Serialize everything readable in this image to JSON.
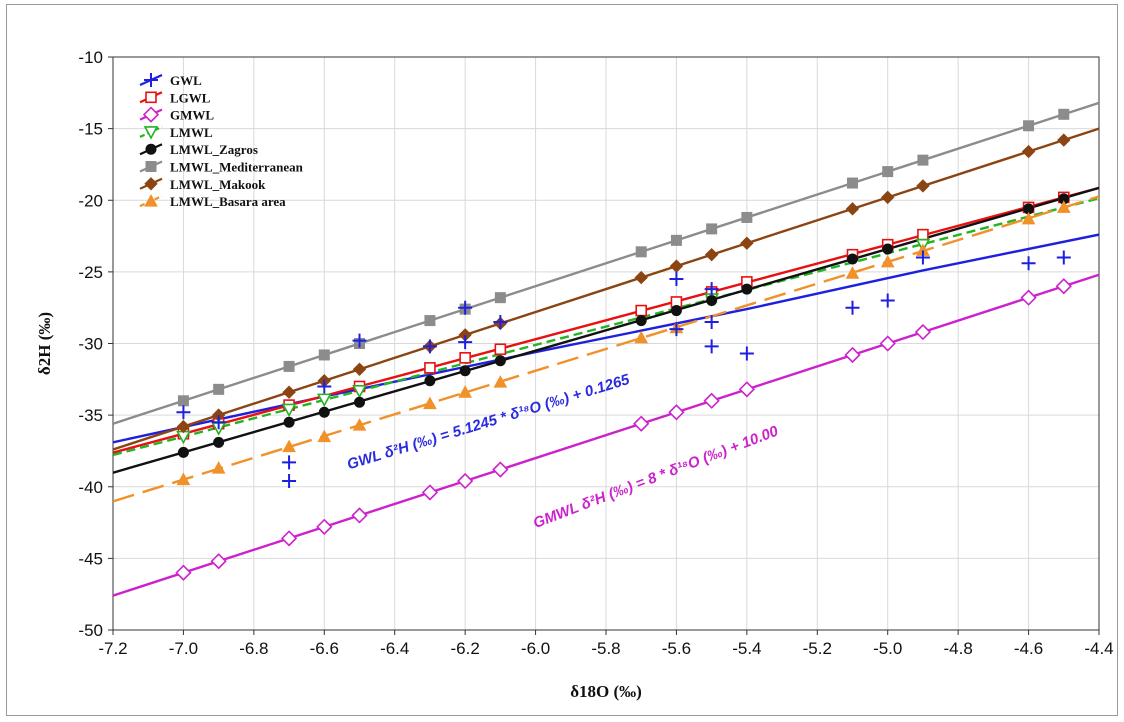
{
  "chart_data": {
    "type": "line",
    "title": "",
    "xlabel": "δ18O (‰)",
    "ylabel": "δ2H (‰)",
    "xlim": [
      -7.2,
      -4.4
    ],
    "ylim": [
      -50,
      -10
    ],
    "xticks": [
      "-7.2",
      "-7.0",
      "-6.8",
      "-6.6",
      "-6.4",
      "-6.2",
      "-6.0",
      "-5.8",
      "-5.6",
      "-5.4",
      "-5.2",
      "-5.0",
      "-4.8",
      "-4.6",
      "-4.4"
    ],
    "yticks": [
      "-10",
      "-15",
      "-20",
      "-25",
      "-30",
      "-35",
      "-40",
      "-45",
      "-50"
    ],
    "grid": true,
    "legend_position": "top-left",
    "series": [
      {
        "name": "GWL",
        "color": "#1f1fe0",
        "marker": "plus",
        "slope": 5.1245,
        "intercept": 0.1265,
        "dash": "solid",
        "points": [
          [
            -7.0,
            -34.8
          ],
          [
            -6.9,
            -35.5
          ],
          [
            -6.7,
            -38.3
          ],
          [
            -6.7,
            -39.6
          ],
          [
            -6.6,
            -33.0
          ],
          [
            -6.5,
            -29.8
          ],
          [
            -6.3,
            -30.2
          ],
          [
            -6.2,
            -27.5
          ],
          [
            -6.2,
            -29.9
          ],
          [
            -6.1,
            -28.5
          ],
          [
            -5.6,
            -25.5
          ],
          [
            -5.6,
            -29.0
          ],
          [
            -5.5,
            -26.2
          ],
          [
            -5.5,
            -28.5
          ],
          [
            -5.5,
            -30.2
          ],
          [
            -5.4,
            -30.7
          ],
          [
            -5.1,
            -27.5
          ],
          [
            -5.0,
            -27.0
          ],
          [
            -4.9,
            -24.0
          ],
          [
            -4.6,
            -24.4
          ],
          [
            -4.5,
            -24.0
          ]
        ]
      },
      {
        "name": "LGWL",
        "color": "#e81010",
        "marker": "square",
        "slope": 6.6,
        "intercept": 9.9,
        "dash": "solid",
        "points": [
          [
            -7.0,
            -36.3
          ],
          [
            -6.9,
            -35.6
          ],
          [
            -6.7,
            -34.3
          ],
          [
            -6.5,
            -33.0
          ],
          [
            -6.3,
            -31.7
          ],
          [
            -6.2,
            -31.0
          ],
          [
            -6.1,
            -30.4
          ],
          [
            -5.7,
            -27.7
          ],
          [
            -5.6,
            -27.1
          ],
          [
            -5.5,
            -26.4
          ],
          [
            -5.4,
            -25.7
          ],
          [
            -5.1,
            -23.8
          ],
          [
            -5.0,
            -23.1
          ],
          [
            -4.9,
            -22.4
          ],
          [
            -4.6,
            -20.5
          ],
          [
            -4.5,
            -19.8
          ]
        ]
      },
      {
        "name": "GMWL",
        "color": "#cc22cc",
        "marker": "diamond",
        "slope": 8,
        "intercept": 10,
        "dash": "solid",
        "points": [
          [
            -7.0,
            -46.0
          ],
          [
            -6.9,
            -45.2
          ],
          [
            -6.7,
            -43.6
          ],
          [
            -6.6,
            -42.8
          ],
          [
            -6.5,
            -42.0
          ],
          [
            -6.3,
            -40.4
          ],
          [
            -6.2,
            -39.6
          ],
          [
            -6.1,
            -38.8
          ],
          [
            -5.7,
            -35.6
          ],
          [
            -5.6,
            -34.8
          ],
          [
            -5.5,
            -34.0
          ],
          [
            -5.4,
            -33.2
          ],
          [
            -5.1,
            -30.8
          ],
          [
            -5.0,
            -30.0
          ],
          [
            -4.9,
            -29.2
          ],
          [
            -4.6,
            -26.8
          ],
          [
            -4.5,
            -26.0
          ]
        ]
      },
      {
        "name": "LMWL",
        "color": "#22b422",
        "marker": "triangle-down",
        "slope": 6.4,
        "intercept": 8.3,
        "dash": "dashed",
        "points": [
          [
            -7.0,
            -36.5
          ],
          [
            -6.9,
            -35.9
          ],
          [
            -6.7,
            -34.6
          ],
          [
            -6.6,
            -33.9
          ],
          [
            -6.5,
            -33.3
          ],
          [
            -5.5,
            -26.9
          ],
          [
            -4.9,
            -23.1
          ]
        ]
      },
      {
        "name": "LMWL_Zagros",
        "color": "#111111",
        "marker": "circle",
        "slope": 7.1,
        "intercept": 12.1,
        "dash": "solid",
        "points": [
          [
            -7.0,
            -37.6
          ],
          [
            -6.9,
            -36.9
          ],
          [
            -6.7,
            -35.5
          ],
          [
            -6.6,
            -34.8
          ],
          [
            -6.5,
            -34.1
          ],
          [
            -6.3,
            -32.6
          ],
          [
            -6.2,
            -31.9
          ],
          [
            -6.1,
            -31.2
          ],
          [
            -5.7,
            -28.4
          ],
          [
            -5.6,
            -27.7
          ],
          [
            -5.5,
            -27.0
          ],
          [
            -5.4,
            -26.2
          ],
          [
            -5.1,
            -24.1
          ],
          [
            -5.0,
            -23.4
          ],
          [
            -4.6,
            -20.6
          ],
          [
            -4.5,
            -19.9
          ]
        ]
      },
      {
        "name": "LMWL_Mediterranean",
        "color": "#8c8c8c",
        "marker": "square-filled",
        "slope": 8.0,
        "intercept": 22.0,
        "dash": "solid",
        "points": [
          [
            -7.0,
            -34.0
          ],
          [
            -6.9,
            -33.2
          ],
          [
            -6.7,
            -31.6
          ],
          [
            -6.6,
            -30.8
          ],
          [
            -6.5,
            -30.0
          ],
          [
            -6.3,
            -28.4
          ],
          [
            -6.2,
            -27.6
          ],
          [
            -6.1,
            -26.8
          ],
          [
            -5.7,
            -23.6
          ],
          [
            -5.6,
            -22.8
          ],
          [
            -5.5,
            -22.0
          ],
          [
            -5.4,
            -21.2
          ],
          [
            -5.1,
            -18.8
          ],
          [
            -5.0,
            -18.0
          ],
          [
            -4.9,
            -17.2
          ],
          [
            -4.6,
            -14.8
          ],
          [
            -4.5,
            -14.0
          ]
        ]
      },
      {
        "name": "LMWL_Makook",
        "color": "#8b4513",
        "marker": "diamond-filled",
        "slope": 8.0,
        "intercept": 20.2,
        "dash": "solid",
        "points": [
          [
            -7.0,
            -35.8
          ],
          [
            -6.9,
            -35.0
          ],
          [
            -6.7,
            -33.4
          ],
          [
            -6.6,
            -32.6
          ],
          [
            -6.5,
            -31.8
          ],
          [
            -6.3,
            -30.2
          ],
          [
            -6.2,
            -29.4
          ],
          [
            -6.1,
            -28.6
          ],
          [
            -5.7,
            -25.4
          ],
          [
            -5.6,
            -24.6
          ],
          [
            -5.5,
            -23.8
          ],
          [
            -5.4,
            -23.0
          ],
          [
            -5.1,
            -20.6
          ],
          [
            -5.0,
            -19.8
          ],
          [
            -4.9,
            -19.0
          ],
          [
            -4.6,
            -16.6
          ],
          [
            -4.5,
            -15.8
          ]
        ]
      },
      {
        "name": "LMWL_Basara area",
        "color": "#f0912a",
        "marker": "triangle-up",
        "slope": 7.6,
        "intercept": 13.7,
        "dash": "long-dash",
        "points": [
          [
            -7.0,
            -39.5
          ],
          [
            -6.9,
            -38.7
          ],
          [
            -6.7,
            -37.2
          ],
          [
            -6.6,
            -36.5
          ],
          [
            -6.5,
            -35.7
          ],
          [
            -6.3,
            -34.2
          ],
          [
            -6.2,
            -33.4
          ],
          [
            -6.1,
            -32.7
          ],
          [
            -5.7,
            -29.6
          ],
          [
            -5.6,
            -28.9
          ],
          [
            -5.1,
            -25.1
          ],
          [
            -5.0,
            -24.3
          ],
          [
            -4.9,
            -23.5
          ],
          [
            -4.6,
            -21.3
          ],
          [
            -4.5,
            -20.5
          ]
        ]
      }
    ],
    "annotations": [
      {
        "text": "GWL δ²H (‰) = 5.1245 * δ¹⁸O (‰) + 0.1265",
        "color": "#2a2ae0",
        "at": [
          -6.53,
          -38.8
        ],
        "angle": -17
      },
      {
        "text": "GMWL δ²H (‰) = 8 * δ¹⁸O (‰) + 10.00",
        "color": "#cc22cc",
        "at": [
          -6.0,
          -42.9
        ],
        "angle": -21
      }
    ]
  }
}
